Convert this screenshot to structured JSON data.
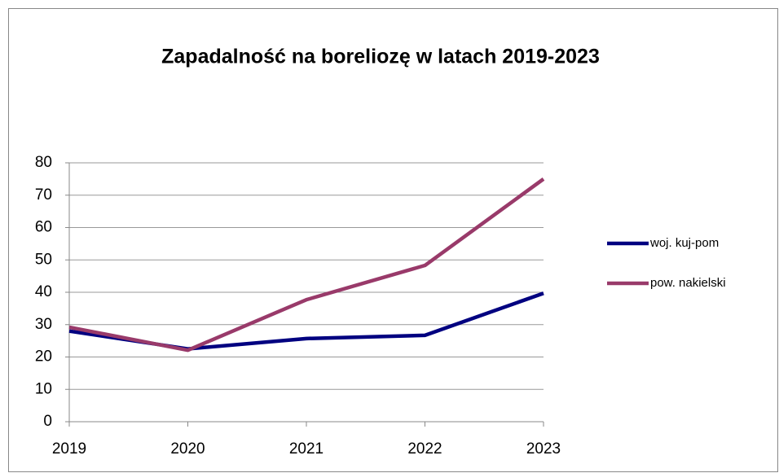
{
  "chart_data": {
    "type": "line",
    "title": "Zapadalność na boreliozę w latach 2019-2023",
    "categories": [
      "2019",
      "2020",
      "2021",
      "2022",
      "2023"
    ],
    "series": [
      {
        "name": "woj. kuj-pom",
        "color": "#000080",
        "values": [
          28,
          22.5,
          25.7,
          26.7,
          39.7
        ]
      },
      {
        "name": "pow. nakielski",
        "color": "#993a6a",
        "values": [
          29.2,
          22.1,
          37.7,
          48.3,
          75
        ]
      }
    ],
    "ylim": [
      0,
      80
    ],
    "yticks": [
      0,
      10,
      20,
      30,
      40,
      50,
      60,
      70,
      80
    ],
    "grid": true,
    "legend": "right"
  }
}
